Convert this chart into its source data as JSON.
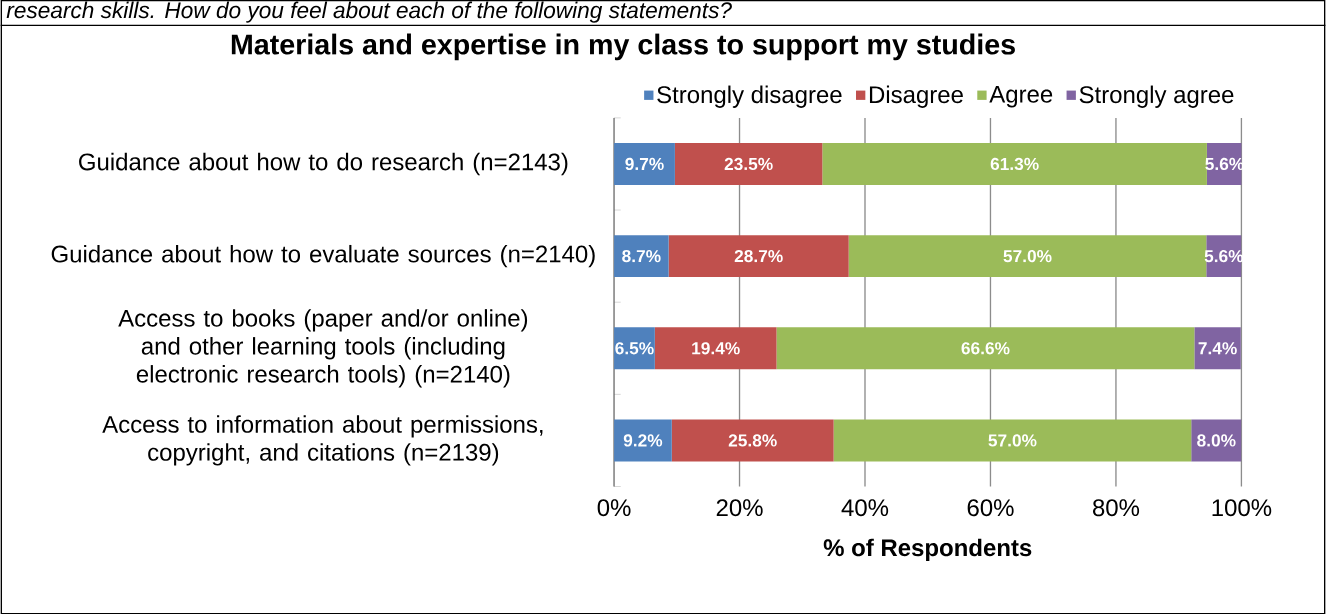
{
  "chart_data": {
    "type": "bar",
    "orientation": "horizontal",
    "stacked": true,
    "title": "Materials and expertise in my class to support my studies",
    "annotations": [
      "research skills. How do you feel about each of the following statements?"
    ],
    "xlabel": "% of Respondents",
    "categories": [
      "Guidance about how to do research (n=2143)",
      "Guidance about how to evaluate sources (n=2140)",
      "Access to books (paper and/or online) and other learning tools (including electronic research tools) (n=2140)",
      "Access to information about permissions, copyright, and citations (n=2139)"
    ],
    "series": [
      {
        "name": "Strongly disagree",
        "color": "#4f81bd",
        "values": [
          9.7,
          8.7,
          6.5,
          9.2
        ],
        "value_labels": [
          "9.7%",
          "8.7%",
          "6.5%",
          "9.2%"
        ]
      },
      {
        "name": "Disagree",
        "color": "#c0504d",
        "values": [
          23.5,
          28.7,
          19.4,
          25.8
        ],
        "value_labels": [
          "23.5%",
          "28.7%",
          "19.4%",
          "25.8%"
        ]
      },
      {
        "name": "Agree",
        "color": "#9bbb59",
        "values": [
          61.3,
          57.0,
          66.6,
          57.0
        ],
        "value_labels": [
          "61.3%",
          "57.0%",
          "66.6%",
          "57.0%"
        ]
      },
      {
        "name": "Strongly agree",
        "color": "#8064a2",
        "values": [
          5.6,
          5.6,
          7.4,
          8.0
        ],
        "value_labels": [
          "5.6%",
          "5.6%",
          "7.4%",
          "8.0%"
        ]
      }
    ],
    "xlim": [
      0,
      100
    ],
    "xticks": [
      {
        "value": 0,
        "label": "0%"
      },
      {
        "value": 20,
        "label": "20%"
      },
      {
        "value": 40,
        "label": "40%"
      },
      {
        "value": 60,
        "label": "60%"
      },
      {
        "value": 80,
        "label": "80%"
      },
      {
        "value": 100,
        "label": "100%"
      }
    ],
    "grid": "x",
    "legend": "top"
  }
}
